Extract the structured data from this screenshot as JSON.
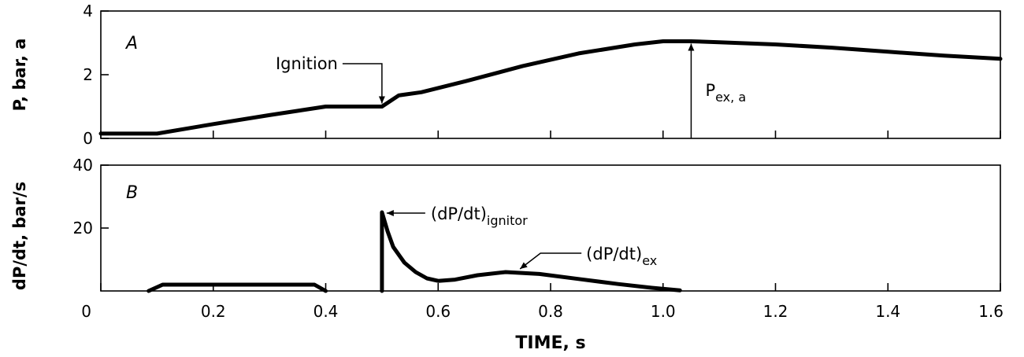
{
  "chart_data": [
    {
      "type": "line",
      "panel_label": "A",
      "xlabel": "",
      "ylabel": "P, bar, a",
      "xlim": [
        0,
        1.6
      ],
      "ylim": [
        0,
        4
      ],
      "yticks": [
        0,
        2,
        4
      ],
      "series": [
        {
          "x": [
            0,
            0.1,
            0.2,
            0.3,
            0.4,
            0.45,
            0.5,
            0.53,
            0.57,
            0.65,
            0.75,
            0.85,
            0.95,
            1.0,
            1.05,
            1.1,
            1.2,
            1.3,
            1.4,
            1.5,
            1.6
          ],
          "y": [
            0.15,
            0.15,
            0.45,
            0.73,
            1.0,
            1.0,
            1.0,
            1.35,
            1.45,
            1.8,
            2.27,
            2.67,
            2.95,
            3.05,
            3.05,
            3.02,
            2.95,
            2.85,
            2.72,
            2.6,
            2.5
          ]
        }
      ],
      "annotations": [
        {
          "text": "Ignition",
          "x": 0.5,
          "y": 1.0
        },
        {
          "text": "P",
          "subscript": "ex, a",
          "x": 1.05,
          "y": 3.05
        }
      ]
    },
    {
      "type": "line",
      "panel_label": "B",
      "xlabel": "TIME, s",
      "ylabel": "dP/dt, bar/s",
      "xlim": [
        0,
        1.6
      ],
      "ylim": [
        0,
        40
      ],
      "xticks": [
        0,
        0.2,
        0.4,
        0.6,
        0.8,
        1.0,
        1.2,
        1.4,
        1.6
      ],
      "xtick_labels": [
        "0",
        "0.2",
        "0.4",
        "0.6",
        "0.8",
        "1.0",
        "1.2",
        "1.4",
        "1.6"
      ],
      "yticks": [
        20,
        40
      ],
      "series": [
        {
          "segments": [
            {
              "x": [
                0.085,
                0.11,
                0.38,
                0.4
              ],
              "y": [
                0,
                2,
                2,
                0
              ]
            },
            {
              "x": [
                0.5,
                0.5,
                0.51,
                0.52,
                0.54,
                0.56,
                0.58,
                0.6,
                0.63,
                0.67,
                0.72,
                0.78,
                0.85,
                0.92,
                0.98,
                1.03
              ],
              "y": [
                0,
                25,
                19,
                14,
                9,
                6,
                4,
                3.2,
                3.6,
                5,
                6,
                5.4,
                3.8,
                2.2,
                1,
                0.2
              ]
            }
          ]
        }
      ],
      "annotations": [
        {
          "text": "(dP/dt)",
          "subscript": "ignitor",
          "x": 0.5,
          "y": 25
        },
        {
          "text": "(dP/dt)",
          "subscript": "ex",
          "x": 0.74,
          "y": 6
        }
      ]
    }
  ]
}
